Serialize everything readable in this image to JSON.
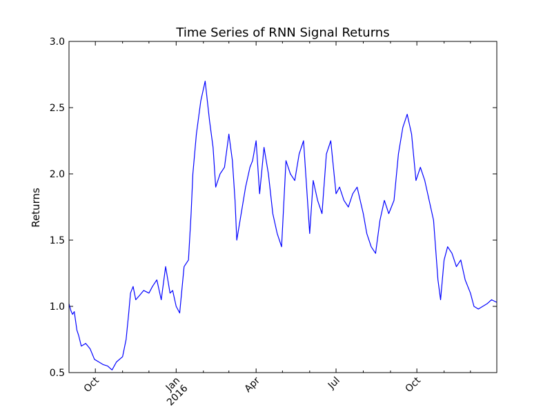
{
  "chart_data": {
    "type": "line",
    "title": "Time Series of RNN Signal Returns",
    "xlabel": "",
    "ylabel": "Returns",
    "ylim": [
      0.5,
      3.0
    ],
    "xlim": [
      "2015-09-01",
      "2016-12-31"
    ],
    "grid": false,
    "legend": "none",
    "colors": {
      "line": "#0000ff",
      "axes": "#000000",
      "background": "#ffffff"
    },
    "y_ticks": [
      {
        "value": 0.5,
        "label": "0.5"
      },
      {
        "value": 1.0,
        "label": "1.0"
      },
      {
        "value": 1.5,
        "label": "1.5"
      },
      {
        "value": 2.0,
        "label": "2.0"
      },
      {
        "value": 2.5,
        "label": "2.5"
      },
      {
        "value": 3.0,
        "label": "3.0"
      }
    ],
    "x_major_ticks": [
      {
        "date": "2015-10-01",
        "label": "Oct"
      },
      {
        "date": "2016-01-01",
        "label": "Jan\n2016"
      },
      {
        "date": "2016-04-01",
        "label": "Apr"
      },
      {
        "date": "2016-07-01",
        "label": "Jul"
      },
      {
        "date": "2016-10-01",
        "label": "Oct"
      }
    ],
    "x_minor_ticks": [
      "2015-11-01",
      "2015-12-01",
      "2016-02-01",
      "2016-03-01",
      "2016-05-01",
      "2016-06-01",
      "2016-08-01",
      "2016-09-01",
      "2016-11-01",
      "2016-12-01"
    ],
    "series": [
      {
        "x": [
          "2015-09-01",
          "2015-09-03",
          "2015-09-05",
          "2015-09-07",
          "2015-09-10",
          "2015-09-12",
          "2015-09-15",
          "2015-09-20",
          "2015-09-25",
          "2015-09-30",
          "2015-10-05",
          "2015-10-10",
          "2015-10-15",
          "2015-10-20",
          "2015-10-25",
          "2015-11-01",
          "2015-11-05",
          "2015-11-08",
          "2015-11-10",
          "2015-11-13",
          "2015-11-16",
          "2015-11-20",
          "2015-11-25",
          "2015-12-01",
          "2015-12-05",
          "2015-12-10",
          "2015-12-15",
          "2015-12-20",
          "2015-12-25",
          "2015-12-28",
          "2016-01-01",
          "2016-01-05",
          "2016-01-10",
          "2016-01-15",
          "2016-01-18",
          "2016-01-20",
          "2016-01-24",
          "2016-01-29",
          "2016-02-03",
          "2016-02-08",
          "2016-02-12",
          "2016-02-15",
          "2016-02-20",
          "2016-02-25",
          "2016-03-01",
          "2016-03-05",
          "2016-03-08",
          "2016-03-10",
          "2016-03-15",
          "2016-03-20",
          "2016-03-25",
          "2016-03-28",
          "2016-04-01",
          "2016-04-05",
          "2016-04-10",
          "2016-04-15",
          "2016-04-20",
          "2016-04-25",
          "2016-04-30",
          "2016-05-05",
          "2016-05-10",
          "2016-05-15",
          "2016-05-20",
          "2016-05-25",
          "2016-06-01",
          "2016-06-05",
          "2016-06-10",
          "2016-06-15",
          "2016-06-20",
          "2016-06-25",
          "2016-07-01",
          "2016-07-05",
          "2016-07-10",
          "2016-07-15",
          "2016-07-20",
          "2016-07-25",
          "2016-08-01",
          "2016-08-05",
          "2016-08-10",
          "2016-08-15",
          "2016-08-20",
          "2016-08-25",
          "2016-08-30",
          "2016-09-05",
          "2016-09-10",
          "2016-09-15",
          "2016-09-20",
          "2016-09-25",
          "2016-09-30",
          "2016-10-05",
          "2016-10-10",
          "2016-10-15",
          "2016-10-20",
          "2016-10-25",
          "2016-10-28",
          "2016-11-01",
          "2016-11-05",
          "2016-11-10",
          "2016-11-15",
          "2016-11-20",
          "2016-11-25",
          "2016-12-01",
          "2016-12-05",
          "2016-12-10",
          "2016-12-15",
          "2016-12-20",
          "2016-12-25",
          "2016-12-31"
        ],
        "y": [
          1.02,
          0.97,
          0.94,
          0.96,
          0.82,
          0.78,
          0.7,
          0.72,
          0.68,
          0.6,
          0.58,
          0.56,
          0.55,
          0.52,
          0.58,
          0.62,
          0.75,
          0.95,
          1.1,
          1.15,
          1.05,
          1.08,
          1.12,
          1.1,
          1.15,
          1.2,
          1.05,
          1.3,
          1.1,
          1.12,
          1.0,
          0.95,
          1.3,
          1.35,
          1.7,
          2.0,
          2.3,
          2.55,
          2.7,
          2.4,
          2.2,
          1.9,
          2.0,
          2.05,
          2.3,
          2.1,
          1.8,
          1.5,
          1.7,
          1.9,
          2.05,
          2.1,
          2.25,
          1.85,
          2.2,
          2.0,
          1.7,
          1.55,
          1.45,
          2.1,
          2.0,
          1.95,
          2.15,
          2.25,
          1.55,
          1.95,
          1.8,
          1.7,
          2.15,
          2.25,
          1.85,
          1.9,
          1.8,
          1.75,
          1.85,
          1.9,
          1.7,
          1.55,
          1.45,
          1.4,
          1.65,
          1.8,
          1.7,
          1.8,
          2.15,
          2.35,
          2.45,
          2.3,
          1.95,
          2.05,
          1.95,
          1.8,
          1.65,
          1.2,
          1.05,
          1.35,
          1.45,
          1.4,
          1.3,
          1.35,
          1.2,
          1.1,
          1.0,
          0.98,
          1.0,
          1.02,
          1.05,
          1.03
        ]
      }
    ]
  }
}
